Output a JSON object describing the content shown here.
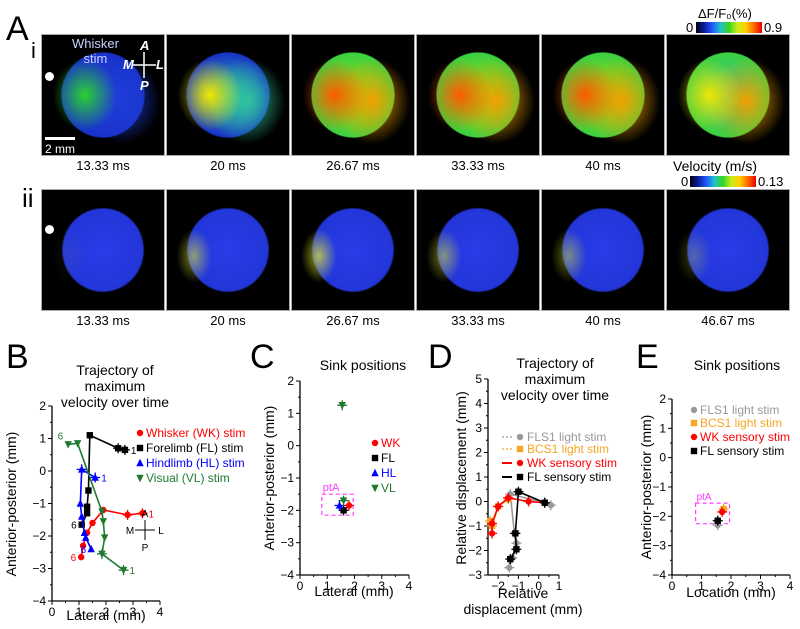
{
  "figure": {
    "panel_A": {
      "letter": "A",
      "row_i": {
        "label": "i",
        "annotation": "Whisker stim",
        "annotation_line1": "Whisker",
        "annotation_line2": "stim",
        "compass": {
          "A": "A",
          "P": "P",
          "M": "M",
          "L": "L"
        },
        "scale_bar": "2 mm",
        "time_labels": [
          "13.33 ms",
          "20 ms",
          "26.67 ms",
          "33.33 ms",
          "40 ms",
          ""
        ],
        "colorbar": {
          "title": "ΔF/F₀(%)",
          "min": "0",
          "max": "0.9"
        },
        "intensity": [
          0.15,
          0.45,
          0.75,
          0.85,
          0.7,
          0.55
        ]
      },
      "row_ii": {
        "label": "ii",
        "time_labels": [
          "13.33 ms",
          "20 ms",
          "26.67 ms",
          "33.33 ms",
          "40 ms",
          "46.67 ms"
        ],
        "colorbar": {
          "title": "Velocity (m/s)",
          "min": "0",
          "max": "0.13"
        }
      }
    }
  },
  "chart_data": [
    {
      "panel": "B",
      "type": "line",
      "title": "Trajectory of maximum velocity over time",
      "title_lines": [
        "Trajectory of",
        "maximum",
        "velocity over time"
      ],
      "xlabel": "Lateral (mm)",
      "ylabel": "Anterior-posterior (mm)",
      "xlim": [
        0,
        4
      ],
      "ylim": [
        -4,
        2
      ],
      "xticks": [
        "0",
        "1",
        "2",
        "3",
        "4"
      ],
      "yticks": [
        "-4",
        "-3",
        "-2",
        "-1",
        "0",
        "1",
        "2"
      ],
      "legend_position": "right",
      "series": [
        {
          "name": "Whisker (WK) stim",
          "color": "#ff0000",
          "marker": "circle",
          "x": [
            3.35,
            2.8,
            1.9,
            1.5,
            1.3,
            1.15,
            1.08
          ],
          "y": [
            -1.3,
            -1.35,
            -1.2,
            -1.6,
            -1.9,
            -2.3,
            -2.65
          ]
        },
        {
          "name": "Forelimb (FL) stim",
          "color": "#000000",
          "marker": "square",
          "x": [
            2.7,
            2.45,
            1.4,
            1.35,
            1.3,
            1.3,
            1.1
          ],
          "y": [
            0.65,
            0.7,
            1.1,
            -0.6,
            -1.1,
            -1.3,
            -1.65
          ]
        },
        {
          "name": "Hindlimb (HL) stim",
          "color": "#0000ff",
          "marker": "triangle-up",
          "x": [
            1.6,
            1.1,
            1.05,
            1.1,
            1.2,
            1.25,
            1.45
          ],
          "y": [
            -0.2,
            0.05,
            -1.0,
            -1.4,
            -1.9,
            -2.05,
            -2.4
          ]
        },
        {
          "name": "Visual (VL) stim",
          "color": "#1e7b2e",
          "marker": "triangle-down",
          "x": [
            2.65,
            1.85,
            1.95,
            1.9,
            1.85,
            0.95,
            0.6
          ],
          "y": [
            -3.05,
            -2.55,
            -2.05,
            -1.55,
            -1.25,
            0.85,
            0.82
          ]
        }
      ],
      "point_labels": [
        "1",
        "6"
      ],
      "compass": {
        "A": "A",
        "P": "P",
        "M": "M",
        "L": "L"
      }
    },
    {
      "panel": "C",
      "type": "scatter",
      "title": "Sink positions",
      "xlabel": "Lateral (mm)",
      "ylabel": "Anterior-posterior (mm)",
      "xlim": [
        0,
        4
      ],
      "ylim": [
        -4,
        2
      ],
      "xticks": [
        "0",
        "1",
        "2",
        "3",
        "4"
      ],
      "yticks": [
        "-4",
        "-3",
        "-2",
        "-1",
        "0",
        "1",
        "2"
      ],
      "legend_position": "right",
      "region_label": "ptA",
      "region": {
        "x": [
          0.8,
          1.95
        ],
        "y": [
          -2.15,
          -1.5
        ]
      },
      "series": [
        {
          "name": "WK",
          "color": "#ff0000",
          "marker": "circle",
          "x": [
            1.8
          ],
          "y": [
            -1.85
          ]
        },
        {
          "name": "FL",
          "color": "#000000",
          "marker": "square",
          "x": [
            1.6
          ],
          "y": [
            -2.0
          ]
        },
        {
          "name": "HL",
          "color": "#0000ff",
          "marker": "triangle-up",
          "x": [
            1.45
          ],
          "y": [
            -1.85
          ]
        },
        {
          "name": "VL",
          "color": "#1e7b2e",
          "marker": "triangle-down",
          "x": [
            1.55,
            1.6
          ],
          "y": [
            1.25,
            -1.7
          ]
        }
      ]
    },
    {
      "panel": "D",
      "type": "line",
      "title": "Trajectory of maximum velocity over time",
      "title_lines": [
        "Trajectory of",
        "maximum",
        "velocity over time"
      ],
      "xlabel": "Relative displacement (mm)",
      "xlabel_lines": [
        "Relative",
        "displacement (mm)"
      ],
      "ylabel": "Relative displacement (mm)",
      "xlim": [
        -2.5,
        1
      ],
      "ylim": [
        -3,
        5
      ],
      "xticks": [
        "-2",
        "-1",
        "0",
        "1"
      ],
      "yticks": [
        "-3",
        "-2",
        "-1",
        "0",
        "1",
        "2",
        "3",
        "4",
        "5"
      ],
      "legend_position": "center-right",
      "series": [
        {
          "name": "FLS1 light stim",
          "color": "#999999",
          "marker": "circle",
          "linestyle": "dotted",
          "x": [
            0.6,
            0.3,
            -1.4,
            -1.2,
            -1.1,
            -1.3,
            -1.45
          ],
          "y": [
            -0.15,
            -0.05,
            0.3,
            -1.3,
            -1.7,
            -2.3,
            -2.7
          ]
        },
        {
          "name": "BCS1  light stim",
          "color": "#f5a623",
          "marker": "square",
          "linestyle": "dotted",
          "x": [
            -1.5,
            -2.0,
            -2.3,
            -2.4
          ],
          "y": [
            0.1,
            -0.2,
            -1.0,
            -0.8
          ]
        },
        {
          "name": "WK sensory stim",
          "color": "#ff0000",
          "marker": "circle",
          "linestyle": "solid",
          "x": [
            0.3,
            -0.5,
            -1.5,
            -2.0,
            -2.3,
            -2.3
          ],
          "y": [
            -0.05,
            0.0,
            0.15,
            -0.2,
            -0.9,
            -1.3
          ]
        },
        {
          "name": "FL sensory stim",
          "color": "#000000",
          "marker": "square",
          "linestyle": "solid",
          "x": [
            0.3,
            -1.0,
            -1.15,
            -1.1,
            -1.4
          ],
          "y": [
            -0.05,
            0.4,
            -1.3,
            -1.95,
            -2.35
          ]
        }
      ]
    },
    {
      "panel": "E",
      "type": "scatter",
      "title": "Sink positions",
      "xlabel": "Location (mm)",
      "ylabel": "Anterior-posterior (mm)",
      "xlim": [
        0,
        4
      ],
      "ylim": [
        -4,
        2
      ],
      "xticks": [
        "0",
        "1",
        "2",
        "3",
        "4"
      ],
      "yticks": [
        "-4",
        "-3",
        "-2",
        "-1",
        "0",
        "1",
        "2"
      ],
      "legend_position": "top-right",
      "region_label": "ptA",
      "region": {
        "x": [
          0.8,
          1.95
        ],
        "y": [
          -2.25,
          -1.55
        ]
      },
      "series": [
        {
          "name": "FLS1 light stim",
          "color": "#999999",
          "marker": "circle",
          "x": [
            1.55
          ],
          "y": [
            -2.3
          ]
        },
        {
          "name": "BCS1  light stim",
          "color": "#f5a623",
          "marker": "square",
          "x": [
            1.75
          ],
          "y": [
            -1.75
          ]
        },
        {
          "name": "WK sensory stim",
          "color": "#ff0000",
          "marker": "circle",
          "x": [
            1.7
          ],
          "y": [
            -1.85
          ]
        },
        {
          "name": "FL sensory stim",
          "color": "#000000",
          "marker": "square",
          "x": [
            1.55
          ],
          "y": [
            -2.15
          ]
        }
      ]
    }
  ]
}
